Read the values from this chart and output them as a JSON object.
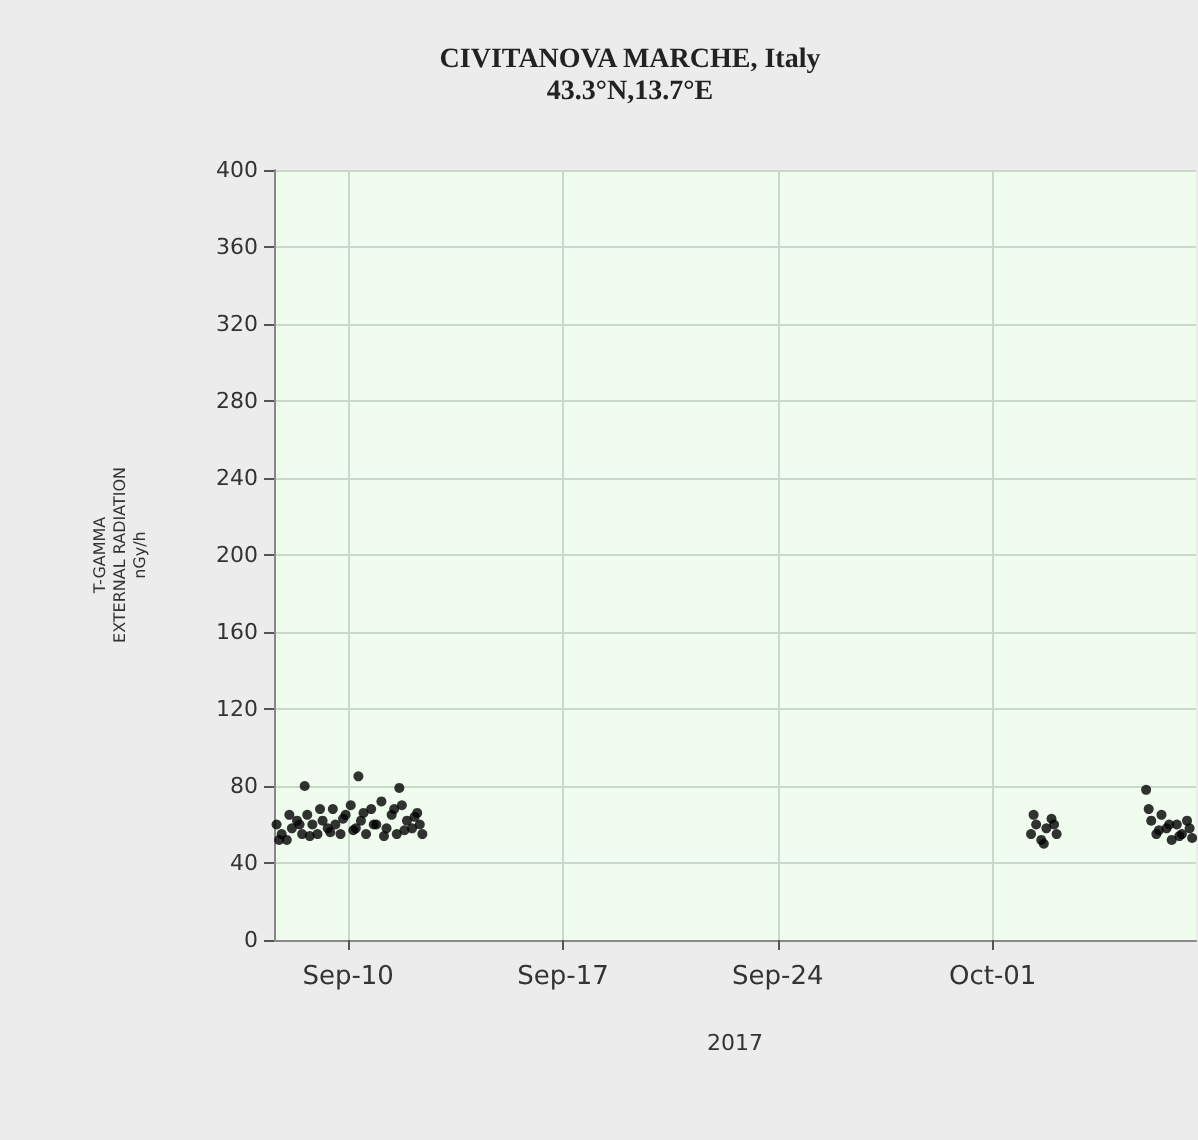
{
  "chart_data": {
    "type": "scatter",
    "title": "CIVITANOVA MARCHE, Italy",
    "subtitle": "43.3°N,13.7°E",
    "xlabel": "2017",
    "ylabel": "T-GAMMA\nEXTERNAL RADIATION\nnGy/h",
    "x": [
      "2017-09-07T16:00",
      "2017-09-07T20:00",
      "2017-09-08T00:00",
      "2017-09-08T04:00",
      "2017-09-08T08:00",
      "2017-09-08T12:00",
      "2017-09-08T16:00",
      "2017-09-08T20:00",
      "2017-09-09T00:00",
      "2017-09-09T04:00",
      "2017-09-09T08:00",
      "2017-09-09T12:00",
      "2017-09-09T14:00",
      "2017-09-09T18:00",
      "2017-09-09T22:00",
      "2017-09-10T02:00",
      "2017-09-10T06:00",
      "2017-09-10T10:00",
      "2017-09-10T14:00",
      "2017-09-10T18:00",
      "2017-09-10T22:00",
      "2017-09-11T02:00",
      "2017-09-11T06:00",
      "2017-09-11T10:00",
      "2017-09-11T14:00",
      "2017-09-11T18:00",
      "2017-09-11T22:00",
      "2017-09-12T02:00",
      "2017-09-12T06:00",
      "2017-09-12T10:00",
      "2017-09-07T18:00",
      "2017-09-08T02:00",
      "2017-09-08T10:00",
      "2017-09-08T18:00",
      "2017-09-09T02:00",
      "2017-09-09T10:00",
      "2017-09-09T20:00",
      "2017-09-10T04:00",
      "2017-09-10T12:00",
      "2017-09-10T20:00",
      "2017-09-11T04:00",
      "2017-09-11T12:00",
      "2017-09-11T20:00",
      "2017-09-12T04:00",
      "2017-09-12T08:00",
      "2017-09-08T14:00",
      "2017-09-10T08:00",
      "2017-09-11T16:00",
      "2017-10-02T06:00",
      "2017-10-02T10:00",
      "2017-10-02T14:00",
      "2017-10-02T18:00",
      "2017-10-02T22:00",
      "2017-10-03T02:00",
      "2017-10-02T08:00",
      "2017-10-02T16:00",
      "2017-10-03T00:00",
      "2017-10-06T00:00",
      "2017-10-06T04:00",
      "2017-10-06T08:00",
      "2017-10-06T12:00",
      "2017-10-06T16:00",
      "2017-10-06T20:00",
      "2017-10-07T00:00",
      "2017-10-07T04:00",
      "2017-10-07T08:00",
      "2017-10-07T12:00",
      "2017-10-06T02:00",
      "2017-10-06T10:00",
      "2017-10-06T18:00",
      "2017-10-07T02:00",
      "2017-10-07T10:00"
    ],
    "series": [
      {
        "color": "#000000",
        "values": [
          60,
          55,
          52,
          58,
          62,
          55,
          65,
          60,
          55,
          62,
          58,
          68,
          60,
          55,
          65,
          70,
          58,
          62,
          55,
          68,
          60,
          72,
          58,
          65,
          55,
          70,
          62,
          58,
          66,
          55,
          52,
          65,
          60,
          54,
          68,
          56,
          63,
          57,
          66,
          60,
          54,
          68,
          57,
          64,
          60,
          80,
          85,
          79,
          55,
          60,
          52,
          58,
          63,
          55,
          65,
          50,
          60,
          78,
          62,
          55,
          65,
          58,
          52,
          60,
          55,
          62,
          53,
          68,
          57,
          60,
          54,
          58
        ]
      }
    ],
    "xlim": [
      "2017-09-07T14:00",
      "2017-10-07T15:00"
    ],
    "xticks": [
      {
        "value": "2017-09-10",
        "label": "Sep-10"
      },
      {
        "value": "2017-09-17",
        "label": "Sep-17"
      },
      {
        "value": "2017-09-24",
        "label": "Sep-24"
      },
      {
        "value": "2017-10-01",
        "label": "Oct-01"
      }
    ],
    "ylim": [
      0,
      400
    ],
    "yticks": [
      0,
      40,
      80,
      120,
      160,
      200,
      240,
      280,
      320,
      360,
      400
    ],
    "grid": true,
    "marker": "circle"
  }
}
